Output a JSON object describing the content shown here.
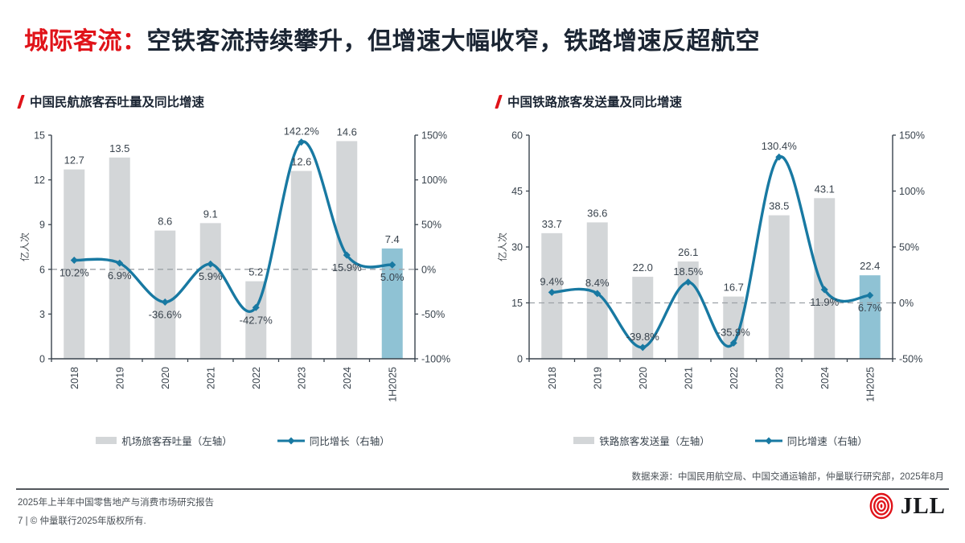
{
  "slide": {
    "title_highlight": "城际客流：",
    "title_rest": "空铁客流持续攀升，但增速大幅收窄，铁路增速反超航空"
  },
  "charts": [
    {
      "title": "中国民航旅客吞吐量及同比增速",
      "y_axis_label": "亿人次",
      "chart_data": {
        "type": "bar+line",
        "categories": [
          "2018",
          "2019",
          "2020",
          "2021",
          "2022",
          "2023",
          "2024",
          "1H2025"
        ],
        "series": [
          {
            "name": "机场旅客吞吐量（左轴）",
            "type": "bar",
            "axis": "left",
            "values": [
              12.7,
              13.5,
              8.6,
              9.1,
              5.2,
              12.6,
              14.6,
              7.4
            ]
          },
          {
            "name": "同比增长（右轴）",
            "type": "line",
            "axis": "right",
            "values": [
              10.2,
              6.9,
              -36.6,
              5.9,
              -42.7,
              142.2,
              15.9,
              5.0
            ]
          }
        ],
        "left_axis": {
          "min": 0,
          "max": 15,
          "ticks": [
            0,
            3,
            6,
            9,
            12,
            15
          ]
        },
        "right_axis": {
          "min": -100,
          "max": 150,
          "ticks": [
            -100,
            -50,
            0,
            50,
            100,
            150
          ]
        },
        "zero_dash_line": true,
        "highlight_index": 7,
        "line_label_sides": [
          "below",
          "below",
          "below",
          "below",
          "below",
          "above",
          "below",
          "below"
        ]
      }
    },
    {
      "title": "中国铁路旅客发送量及同比增速",
      "y_axis_label": "亿人次",
      "chart_data": {
        "type": "bar+line",
        "categories": [
          "2018",
          "2019",
          "2020",
          "2021",
          "2022",
          "2023",
          "2024",
          "1H2025"
        ],
        "series": [
          {
            "name": "铁路旅客发送量（左轴）",
            "type": "bar",
            "axis": "left",
            "values": [
              33.7,
              36.6,
              22.0,
              26.1,
              16.7,
              38.5,
              43.1,
              22.4
            ]
          },
          {
            "name": "同比增速（右轴）",
            "type": "line",
            "axis": "right",
            "values": [
              9.4,
              8.4,
              -39.8,
              18.5,
              -35.9,
              130.4,
              11.9,
              6.7
            ]
          }
        ],
        "left_axis": {
          "min": 0,
          "max": 60,
          "ticks": [
            0,
            15,
            30,
            45,
            60
          ]
        },
        "right_axis": {
          "min": -50,
          "max": 150,
          "ticks": [
            -50,
            0,
            50,
            100,
            150
          ]
        },
        "zero_dash_line": true,
        "highlight_index": 7,
        "line_label_sides": [
          "above",
          "above",
          "above",
          "above",
          "above",
          "above",
          "below",
          "below"
        ]
      }
    }
  ],
  "source_note": "数据来源：中国民用航空局、中国交通运输部，仲量联行研究部，2025年8月",
  "footer": {
    "report_title": "2025年上半年中国零售地产与消费市场研究报告",
    "page_copyright": "7 | © 仲量联行2025年版权所有.",
    "logo_text": "JLL"
  },
  "colors": {
    "accent_red": "#E01319",
    "title_color": "#1B2533",
    "bar_gray": "#D3D6D8",
    "bar_highlight": "#8FC2D4",
    "line_color": "#1879A2",
    "dash_color": "#9CA1A6",
    "axis_color": "#39434D",
    "text_color": "#39434D",
    "muted_text": "#4A5056",
    "footer_rule": "#53575C",
    "logo_red": "#E01319"
  }
}
